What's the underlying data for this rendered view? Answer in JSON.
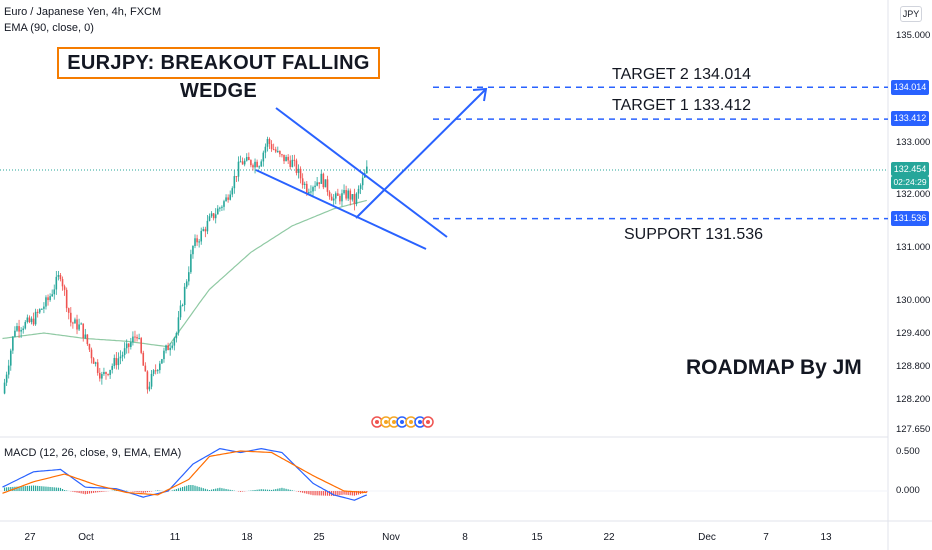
{
  "legend": {
    "symbol_line": "Euro / Japanese Yen, 4h, FXCM",
    "ema_line": "EMA (90, close, 0)",
    "macd_line": "MACD (12, 26, close, 9, EMA, EMA)"
  },
  "currency_button": "JPY",
  "title": "EURJPY: BREAKOUT FALLING WEDGE",
  "annotations": {
    "target2": "TARGET 2  134.014",
    "target1": "TARGET 1  133.412",
    "support": "SUPPORT 131.536",
    "roadmap": "ROADMAP By JM"
  },
  "price_labels": {
    "target2": "134.014",
    "target1": "133.412",
    "current_price": "132.454",
    "countdown": "02:24:29",
    "support": "131.536"
  },
  "colors": {
    "up": "#26a69a",
    "down": "#ef5350",
    "drawing": "#2962ff",
    "ema": "#8fc9a3",
    "macd": "#2962ff",
    "signal": "#ff6d00",
    "title_border": "#f57c00"
  },
  "chart_data": {
    "type": "candlestick",
    "timeframe": "4h",
    "y_ticks": [
      "135.000",
      "133.000",
      "132.000",
      "131.000",
      "130.000",
      "129.400",
      "128.800",
      "128.200",
      "127.650"
    ],
    "x_ticks": [
      "27",
      "Oct",
      "11",
      "18",
      "25",
      "Nov",
      "8",
      "15",
      "22",
      "Dec",
      "7",
      "13"
    ],
    "close_path": [
      {
        "i": 0,
        "c": 128.3
      },
      {
        "i": 6,
        "c": 129.5
      },
      {
        "i": 14,
        "c": 129.6
      },
      {
        "i": 22,
        "c": 130.0
      },
      {
        "i": 28,
        "c": 130.5
      },
      {
        "i": 33,
        "c": 129.6
      },
      {
        "i": 38,
        "c": 129.5
      },
      {
        "i": 43,
        "c": 129.0
      },
      {
        "i": 48,
        "c": 128.6
      },
      {
        "i": 55,
        "c": 128.9
      },
      {
        "i": 60,
        "c": 129.1
      },
      {
        "i": 65,
        "c": 129.4
      },
      {
        "i": 70,
        "c": 128.4
      },
      {
        "i": 76,
        "c": 128.9
      },
      {
        "i": 84,
        "c": 129.4
      },
      {
        "i": 92,
        "c": 131.0
      },
      {
        "i": 100,
        "c": 131.5
      },
      {
        "i": 108,
        "c": 131.9
      },
      {
        "i": 115,
        "c": 132.6
      },
      {
        "i": 124,
        "c": 132.6
      },
      {
        "i": 128,
        "c": 133.0
      },
      {
        "i": 134,
        "c": 132.7
      },
      {
        "i": 140,
        "c": 132.6
      },
      {
        "i": 147,
        "c": 132.1
      },
      {
        "i": 154,
        "c": 132.3
      },
      {
        "i": 160,
        "c": 131.9
      },
      {
        "i": 167,
        "c": 132.0
      },
      {
        "i": 170,
        "c": 131.85
      },
      {
        "i": 176,
        "c": 132.454
      }
    ],
    "ema_path": [
      {
        "i": 0,
        "c": 129.3
      },
      {
        "i": 20,
        "c": 129.4
      },
      {
        "i": 40,
        "c": 129.3
      },
      {
        "i": 60,
        "c": 129.25
      },
      {
        "i": 80,
        "c": 129.15
      },
      {
        "i": 100,
        "c": 130.2
      },
      {
        "i": 120,
        "c": 130.9
      },
      {
        "i": 140,
        "c": 131.4
      },
      {
        "i": 160,
        "c": 131.72
      },
      {
        "i": 176,
        "c": 131.88
      }
    ],
    "levels": {
      "target2": 134.014,
      "target1": 133.412,
      "current": 132.454,
      "support": 131.536
    },
    "macd": {
      "zero_label": "0.000",
      "top_label": "0.500",
      "macd_path": [
        {
          "i": 0,
          "c": 0.05
        },
        {
          "i": 15,
          "c": 0.25
        },
        {
          "i": 28,
          "c": 0.28
        },
        {
          "i": 40,
          "c": 0.05
        },
        {
          "i": 55,
          "c": 0.03
        },
        {
          "i": 68,
          "c": -0.08
        },
        {
          "i": 80,
          "c": 0.0
        },
        {
          "i": 92,
          "c": 0.35
        },
        {
          "i": 105,
          "c": 0.55
        },
        {
          "i": 115,
          "c": 0.5
        },
        {
          "i": 125,
          "c": 0.55
        },
        {
          "i": 135,
          "c": 0.5
        },
        {
          "i": 150,
          "c": 0.1
        },
        {
          "i": 160,
          "c": -0.05
        },
        {
          "i": 170,
          "c": -0.12
        },
        {
          "i": 176,
          "c": -0.05
        }
      ],
      "signal_path": [
        {
          "i": 0,
          "c": -0.03
        },
        {
          "i": 15,
          "c": 0.12
        },
        {
          "i": 30,
          "c": 0.22
        },
        {
          "i": 45,
          "c": 0.08
        },
        {
          "i": 60,
          "c": -0.02
        },
        {
          "i": 75,
          "c": -0.05
        },
        {
          "i": 90,
          "c": 0.15
        },
        {
          "i": 100,
          "c": 0.45
        },
        {
          "i": 115,
          "c": 0.52
        },
        {
          "i": 130,
          "c": 0.5
        },
        {
          "i": 150,
          "c": 0.2
        },
        {
          "i": 165,
          "c": 0.0
        },
        {
          "i": 176,
          "c": -0.02
        }
      ]
    }
  }
}
